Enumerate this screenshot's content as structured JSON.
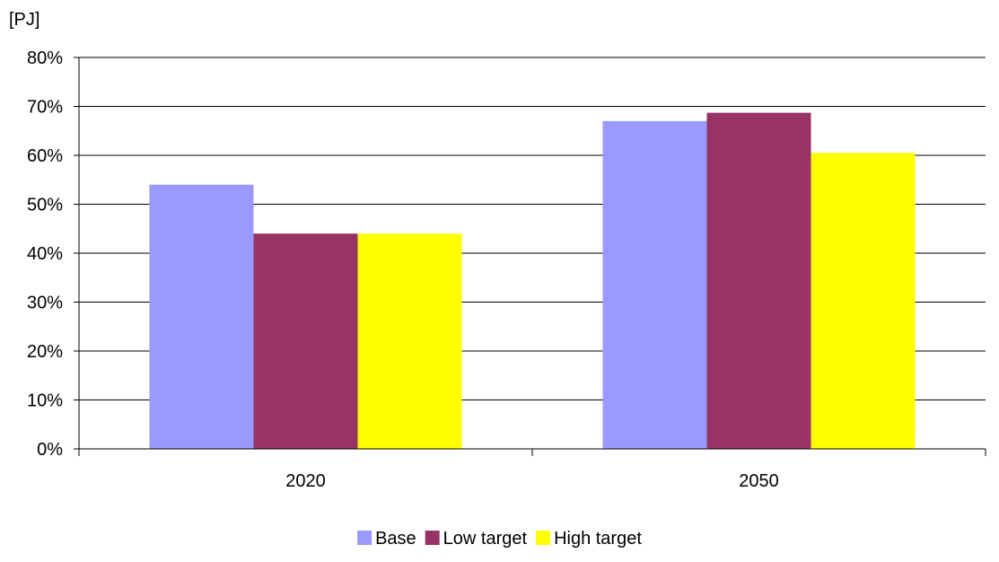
{
  "chart_data": {
    "type": "bar",
    "title": "",
    "xlabel": "",
    "ylabel": "[PJ]",
    "categories": [
      "2020",
      "2050"
    ],
    "series": [
      {
        "name": "Base",
        "color": "#9999ff",
        "values": [
          0.54,
          0.67
        ]
      },
      {
        "name": "Low target",
        "color": "#993366",
        "values": [
          0.44,
          0.687
        ]
      },
      {
        "name": "High target",
        "color": "#ffff00",
        "values": [
          0.44,
          0.605
        ]
      }
    ],
    "ylim": [
      0,
      0.8
    ],
    "yticks": [
      {
        "value": 0,
        "label": "0%"
      },
      {
        "value": 0.1,
        "label": "10%"
      },
      {
        "value": 0.2,
        "label": "20%"
      },
      {
        "value": 0.3,
        "label": "30%"
      },
      {
        "value": 0.4,
        "label": "40%"
      },
      {
        "value": 0.5,
        "label": "50%"
      },
      {
        "value": 0.6,
        "label": "60%"
      },
      {
        "value": 0.7,
        "label": "70%"
      },
      {
        "value": 0.8,
        "label": "80%"
      }
    ],
    "grid": true,
    "legend": "bottom"
  }
}
